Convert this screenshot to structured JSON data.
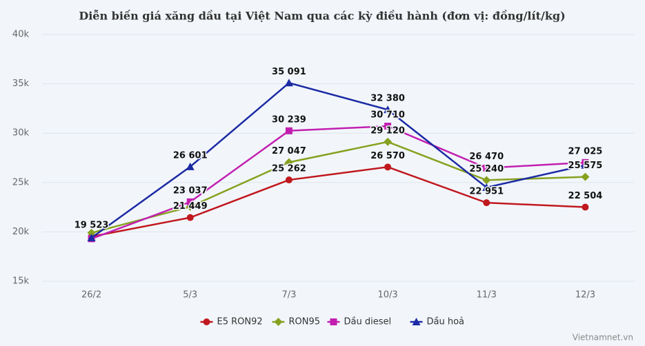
{
  "chart_data": {
    "type": "line",
    "title": "Diễn biến giá xăng dầu tại Việt Nam qua các kỳ điều hành (đơn vị: đồng/lít/kg)",
    "credit": "Vietnamnet.vn",
    "categories": [
      "26/2",
      "5/3",
      "7/3",
      "10/3",
      "11/3",
      "12/3"
    ],
    "ylim": [
      15000,
      40000
    ],
    "yticks": [
      {
        "value": 15000,
        "label": "15k"
      },
      {
        "value": 20000,
        "label": "20k"
      },
      {
        "value": 25000,
        "label": "25k"
      },
      {
        "value": 30000,
        "label": "30k"
      },
      {
        "value": 35000,
        "label": "35k"
      },
      {
        "value": 40000,
        "label": "40k"
      }
    ],
    "grid": true,
    "legend": "bottom",
    "series": [
      {
        "name": "E5 RON92",
        "color": "#c0181e",
        "marker": "circle",
        "values": [
          19523,
          21449,
          25262,
          26570,
          22951,
          22504
        ],
        "value_labels": [
          "19 523",
          "21 449",
          "25 262",
          "26 570",
          "22 951",
          "22 504"
        ]
      },
      {
        "name": "RON95",
        "color": "#87a11f",
        "marker": "diamond",
        "values": [
          19900,
          22550,
          27047,
          29120,
          25240,
          25575
        ],
        "value_labels": [
          null,
          null,
          "27 047",
          "29 120",
          "25 240",
          "25 575"
        ]
      },
      {
        "name": "Dầu diesel",
        "color": "#c21fb0",
        "marker": "square",
        "values": [
          19300,
          23037,
          30239,
          30710,
          26470,
          27025
        ],
        "value_labels": [
          null,
          "23 037",
          "30 239",
          "30 710",
          "26 470",
          "27 025"
        ]
      },
      {
        "name": "Dầu hoả",
        "color": "#1b2aa3",
        "marker": "triangle",
        "values": [
          19400,
          26601,
          35091,
          32380,
          24500,
          26750
        ],
        "value_labels": [
          null,
          "26 601",
          "35 091",
          "32 380",
          null,
          null
        ]
      }
    ]
  }
}
